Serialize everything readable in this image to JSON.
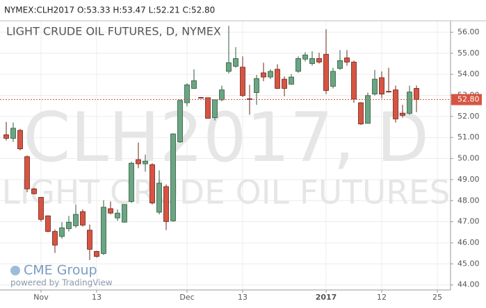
{
  "chart_data": {
    "type": "candlestick",
    "header": "NYMEX:CLH2017 O:53.33 H:53.47 L:52.21 C:52.80",
    "title": "LIGHT CRUDE OIL FUTURES, D, NYMEX",
    "watermark": "CLH2017, D",
    "watermark_subtitle": "LIGHT CRUDE OIL FUTURES",
    "logo": "CME Group",
    "credit": "powered by TradingView",
    "up_color": "#6ba583",
    "down_color": "#d75442",
    "grid": true,
    "xlim": [
      -0.9,
      63.9
    ],
    "xticks": [
      {
        "value": 5,
        "label": "Nov"
      },
      13,
      {
        "value": 26,
        "label": "Dec"
      },
      {
        "value": 34,
        "label": "13"
      },
      {
        "value": 46,
        "label": "2017"
      },
      {
        "value": 54,
        "label": "12"
      },
      {
        "value": 62,
        "label": "25"
      }
    ],
    "ylim": [
      43.76,
      56.54
    ],
    "yticks": [
      {
        "value": 44,
        "label": "44.00"
      },
      {
        "value": 45,
        "label": "45.00"
      },
      {
        "value": 46,
        "label": "46.00"
      },
      {
        "value": 47,
        "label": "47.00"
      },
      {
        "value": 48,
        "label": "48.00"
      },
      {
        "value": 49,
        "label": "49.00"
      },
      {
        "value": 50,
        "label": "50.00"
      },
      {
        "value": 51,
        "label": "51.00"
      },
      {
        "value": 52,
        "label": "52.00"
      },
      {
        "value": 53,
        "label": "53.00"
      },
      {
        "value": 54,
        "label": "54.00"
      },
      {
        "value": 55,
        "label": "55.00"
      },
      {
        "value": 56,
        "label": "56.00"
      }
    ],
    "current_price": {
      "value": 52.8,
      "label": "52.80"
    },
    "open": [
      51.13,
      50.96,
      51.34,
      50.09,
      48.56,
      48.16,
      47.28,
      46.54,
      46.3,
      46.67,
      46.81,
      47.48,
      46.6,
      45.59,
      45.49,
      47.62,
      47.18,
      46.98,
      47.96,
      49.95,
      49.75,
      49.71,
      47.45,
      48.67,
      47.04,
      50.79,
      52.65,
      53.33,
      52.9,
      52.89,
      51.94,
      52.79,
      54.14,
      54.38,
      54.34,
      52.84,
      53.13,
      54.07,
      53.87,
      54.24,
      53.77,
      53.53,
      54.14,
      54.72,
      54.51,
      54.75,
      54.95,
      53.43,
      54.28,
      54.78,
      54.58,
      52.65,
      51.67,
      53.06,
      53.84,
      53.19,
      53.26,
      52.15,
      52.15,
      53.33
    ],
    "high": [
      51.74,
      51.71,
      51.4,
      50.15,
      48.6,
      48.16,
      47.3,
      46.64,
      46.98,
      47.28,
      47.82,
      47.58,
      46.87,
      45.62,
      48.02,
      47.96,
      47.58,
      47.82,
      49.85,
      50.76,
      50.19,
      49.78,
      49.44,
      48.77,
      51.2,
      52.8,
      53.57,
      54.24,
      52.92,
      52.9,
      52.82,
      53.46,
      56.3,
      55.29,
      54.85,
      53.5,
      53.97,
      54.55,
      54.24,
      54.48,
      53.9,
      54.01,
      54.85,
      55.05,
      55.09,
      55.02,
      56.14,
      54.31,
      55.15,
      55.15,
      54.65,
      52.68,
      53.13,
      54.21,
      54.14,
      54.31,
      53.46,
      52.55,
      53.46,
      53.47
    ],
    "low": [
      50.86,
      50.79,
      50.39,
      48.4,
      48.3,
      47.01,
      46.5,
      45.52,
      46.2,
      46.54,
      46.71,
      46.77,
      45.18,
      45.3,
      45.42,
      47.35,
      47.04,
      46.95,
      47.89,
      49.54,
      49.38,
      47.82,
      47.35,
      46.6,
      47.0,
      50.75,
      52.48,
      53.3,
      52.86,
      51.91,
      51.81,
      52.72,
      54.04,
      54.31,
      52.92,
      52.08,
      52.55,
      53.67,
      53.77,
      53.3,
      52.96,
      53.5,
      54.07,
      54.61,
      54.41,
      54.51,
      53.06,
      53.33,
      54.21,
      54.41,
      52.65,
      51.6,
      51.67,
      52.99,
      52.86,
      53.13,
      51.71,
      51.94,
      52.08,
      52.21
    ],
    "close": [
      50.96,
      51.44,
      50.46,
      48.56,
      48.33,
      47.11,
      46.54,
      45.89,
      46.71,
      46.98,
      47.35,
      46.84,
      45.69,
      45.35,
      47.69,
      47.41,
      47.41,
      47.82,
      49.78,
      49.75,
      49.88,
      47.89,
      48.83,
      47.01,
      51.17,
      52.76,
      53.5,
      53.7,
      52.88,
      51.91,
      52.79,
      53.26,
      54.55,
      54.75,
      52.99,
      52.8,
      53.8,
      53.87,
      54.14,
      53.33,
      53.33,
      53.87,
      54.75,
      54.92,
      54.75,
      54.58,
      53.23,
      54.14,
      54.65,
      54.58,
      52.82,
      51.64,
      52.99,
      53.77,
      53.06,
      53.17,
      51.88,
      52.05,
      53.16,
      52.8
    ]
  }
}
